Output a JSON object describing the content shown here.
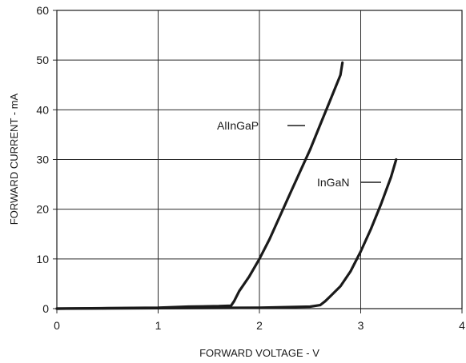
{
  "chart_data": {
    "type": "line",
    "xlabel": "FORWARD VOLTAGE - V",
    "ylabel": "FORWARD CURRENT - mA",
    "xlim": [
      0,
      4
    ],
    "ylim": [
      0,
      60
    ],
    "xticks": [
      "0",
      "1",
      "2",
      "3",
      "4"
    ],
    "yticks": [
      "0",
      "10",
      "20",
      "30",
      "40",
      "50",
      "60"
    ],
    "grid": true,
    "legend": "none",
    "series": [
      {
        "name": "AlInGaP",
        "x": [
          0,
          0.5,
          1.0,
          1.3,
          1.6,
          1.72,
          1.75,
          1.8,
          1.9,
          2.0,
          2.1,
          2.2,
          2.3,
          2.4,
          2.5,
          2.6,
          2.7,
          2.8,
          2.82
        ],
        "y": [
          0,
          0.1,
          0.2,
          0.4,
          0.5,
          0.6,
          1.5,
          3.5,
          6.5,
          10,
          14,
          18.5,
          23,
          27.5,
          32,
          37,
          42,
          47,
          49.5
        ]
      },
      {
        "name": "InGaN",
        "x": [
          0,
          1.0,
          2.0,
          2.5,
          2.6,
          2.65,
          2.7,
          2.8,
          2.9,
          3.0,
          3.1,
          3.2,
          3.3,
          3.35
        ],
        "y": [
          0,
          0.1,
          0.2,
          0.4,
          0.7,
          1.5,
          2.5,
          4.5,
          7.5,
          11.5,
          16,
          21,
          26.5,
          30
        ]
      }
    ]
  }
}
